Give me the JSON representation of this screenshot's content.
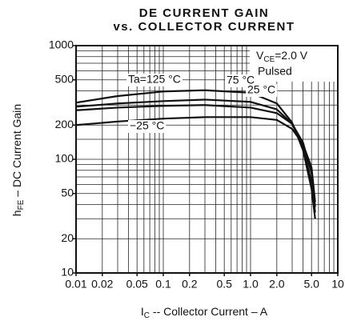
{
  "chart_data": {
    "type": "line",
    "title": [
      "DE CURRENT GAIN",
      "vs. COLLECTOR CURRENT"
    ],
    "xlabel": [
      "I",
      "C",
      " -- Collector Current – A"
    ],
    "ylabel": [
      "h",
      "FE",
      " – DC Current Gain"
    ],
    "annotation": {
      "main": "V",
      "sub": "CE",
      "rest": "=2.0 V",
      "note": "Pulsed"
    },
    "x": [
      0.01,
      0.03,
      0.1,
      0.3,
      1.0,
      2.0,
      3.0,
      4.0,
      5.0,
      5.5
    ],
    "series": [
      {
        "name": "Ta=125 °C",
        "color": "#111",
        "values": [
          315,
          360,
          395,
          405,
          385,
          310,
          210,
          120,
          55,
          30
        ]
      },
      {
        "name": "75 °C",
        "color": "#111",
        "values": [
          290,
          310,
          325,
          335,
          320,
          275,
          205,
          130,
          62,
          34
        ]
      },
      {
        "name": "25 °C",
        "color": "#111",
        "values": [
          270,
          285,
          295,
          300,
          285,
          255,
          205,
          140,
          75,
          38
        ]
      },
      {
        "name": "−25 °C",
        "color": "#111",
        "values": [
          200,
          215,
          228,
          235,
          235,
          222,
          185,
          135,
          85,
          42
        ]
      }
    ],
    "xlim": [
      0.01,
      10
    ],
    "ylim": [
      10,
      1000
    ],
    "log": true,
    "xticks": [
      0.01,
      0.02,
      0.05,
      0.1,
      0.2,
      0.5,
      {
        "value": 1,
        "label": "1.0"
      },
      {
        "value": 2,
        "label": "2.0"
      },
      {
        "value": 5,
        "label": "5.0"
      },
      10
    ],
    "yticks": [
      10,
      20,
      50,
      100,
      200,
      500,
      1000
    ],
    "xgrid": [
      0.02,
      0.03,
      0.04,
      0.05,
      0.06,
      0.07,
      0.08,
      0.09,
      0.1,
      0.2,
      0.3,
      0.4,
      0.5,
      0.6,
      0.7,
      0.8,
      0.9,
      1,
      2,
      3,
      4,
      5,
      6,
      7,
      8,
      9
    ],
    "ygrid": [
      20,
      30,
      40,
      50,
      60,
      70,
      80,
      90,
      100,
      150,
      200,
      300,
      400,
      500,
      600,
      700,
      800,
      900
    ]
  }
}
